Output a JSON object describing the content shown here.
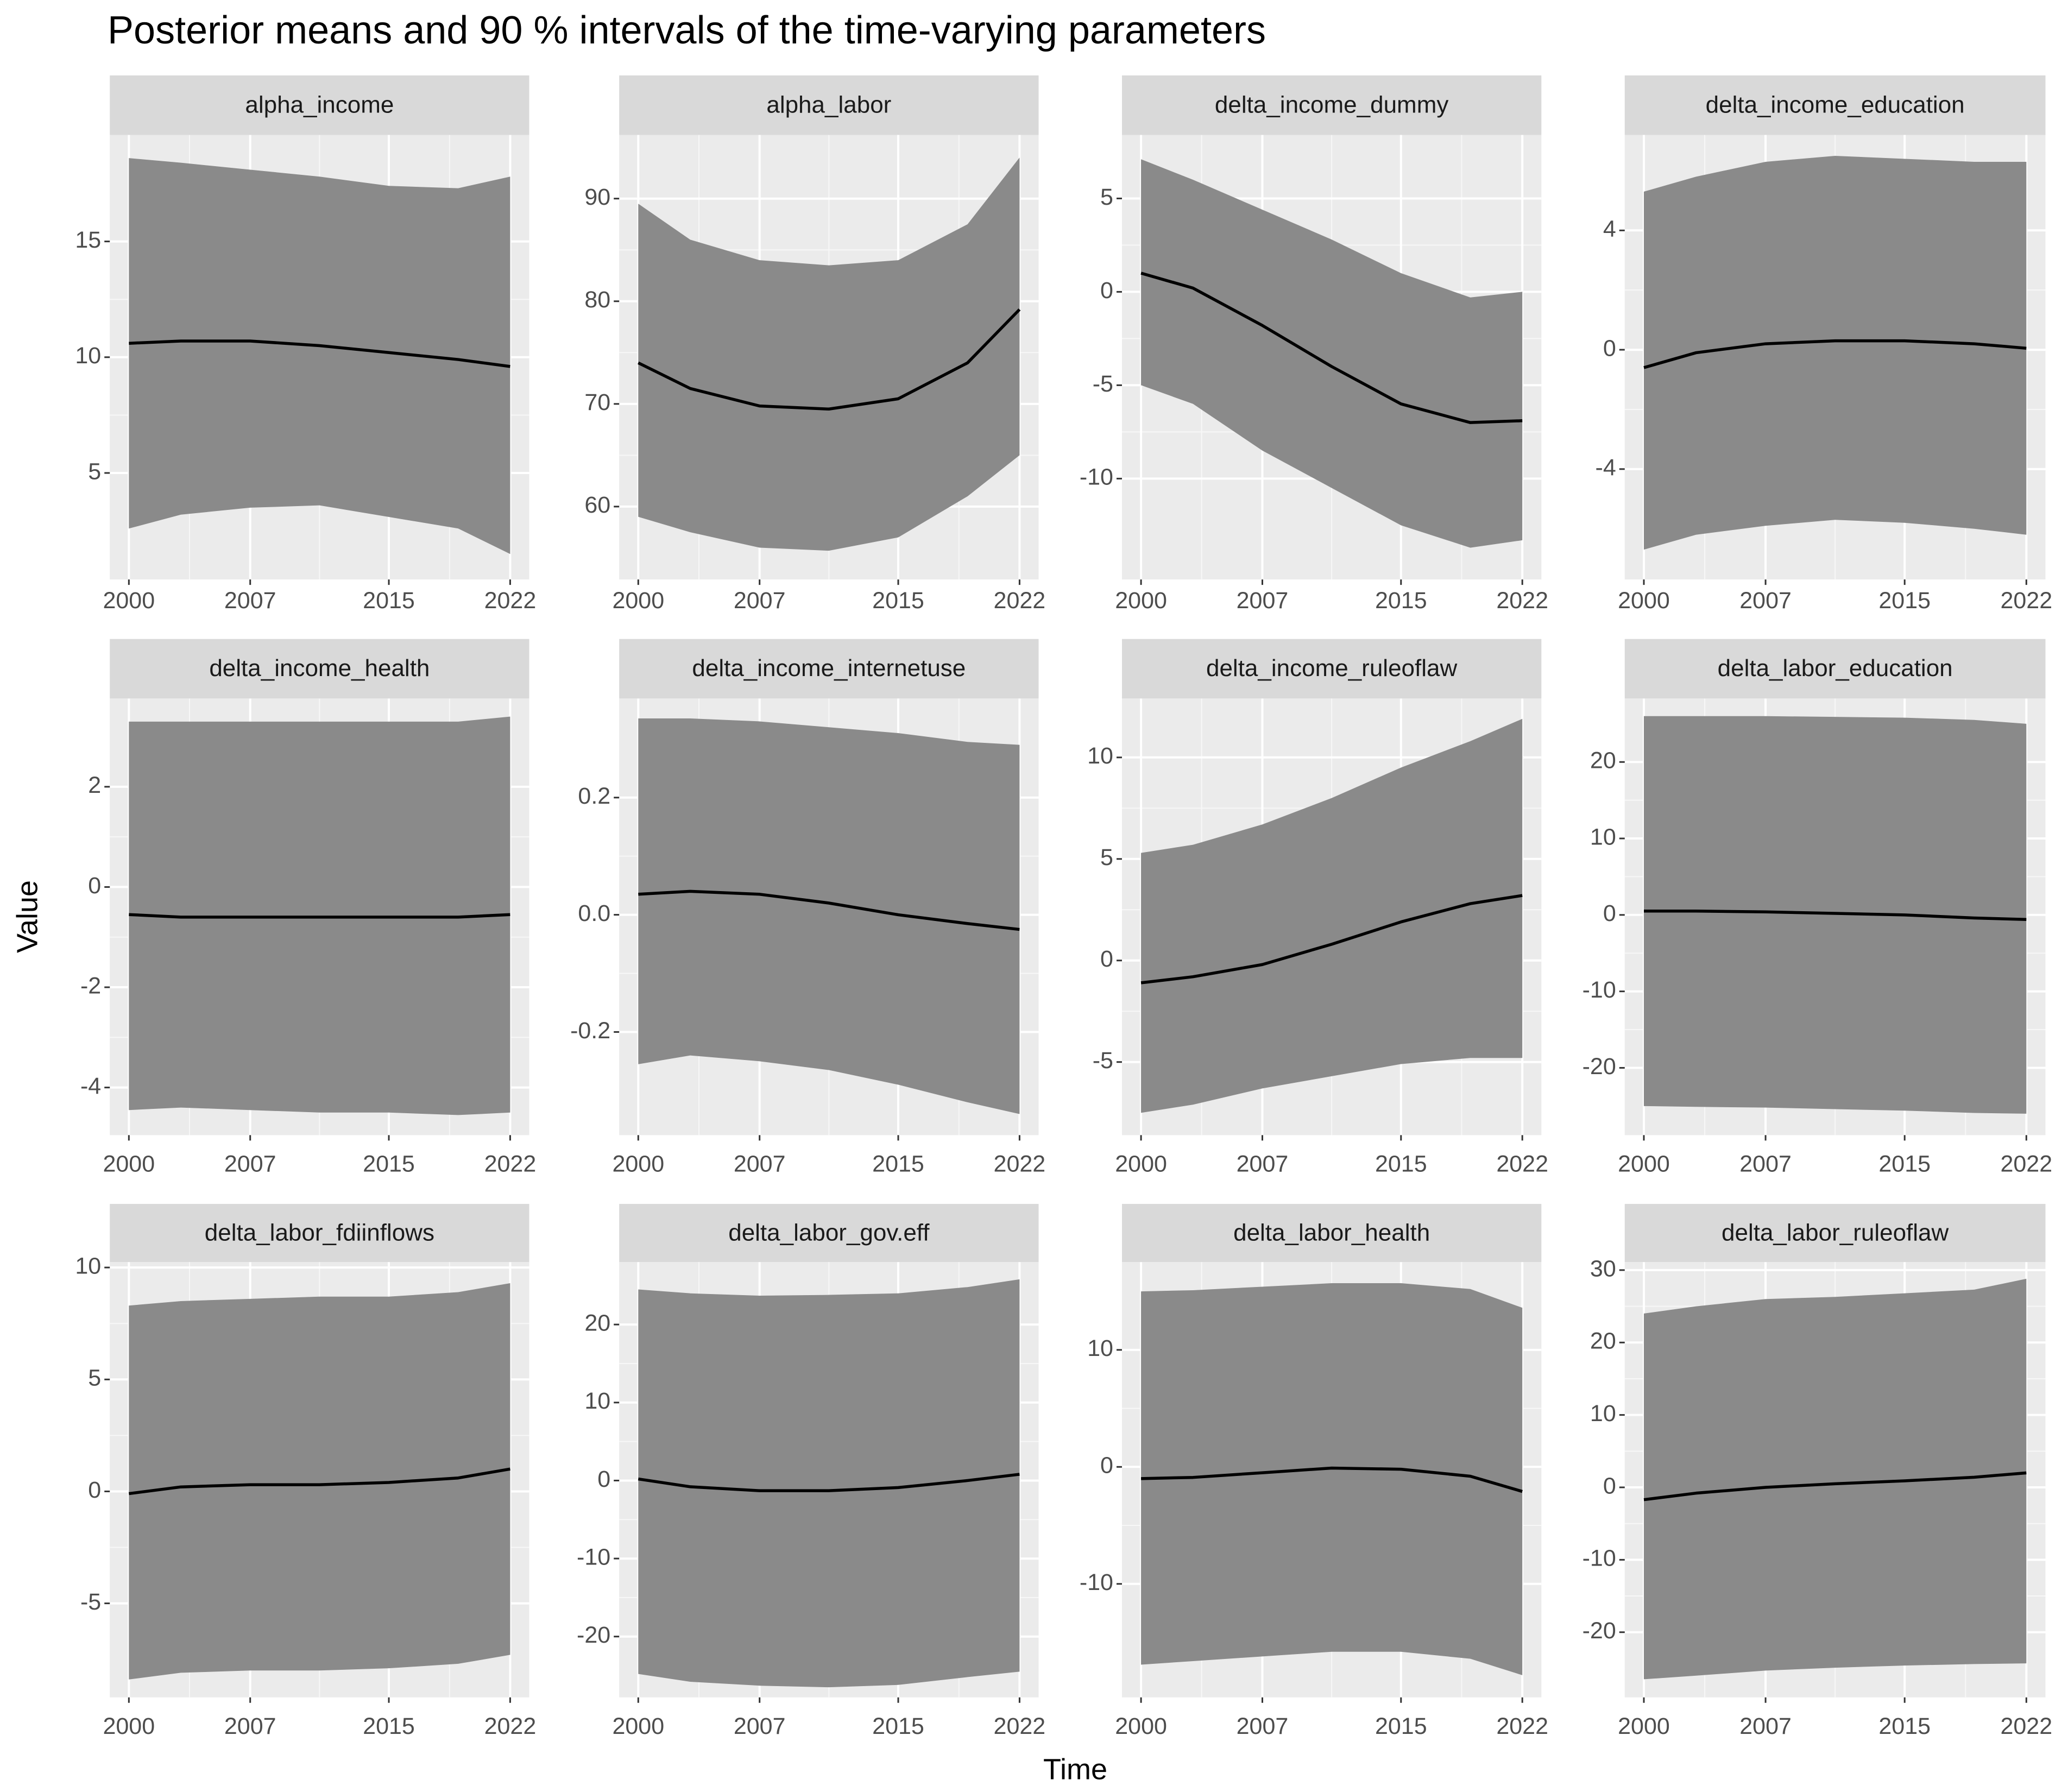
{
  "figure": {
    "title": "Posterior means and 90 % intervals of the time-varying parameters",
    "xlabel": "Time",
    "ylabel": "Value",
    "line_color": "#000000",
    "band_color": "#8a8a8a",
    "panel_color": "#ebebeb",
    "strip_color": "#d9d9d9",
    "grid": true
  },
  "chart_data": [
    {
      "type": "line",
      "title": "alpha_income",
      "x": [
        2000,
        2003,
        2007,
        2011,
        2015,
        2019,
        2022
      ],
      "values": [
        10.6,
        10.7,
        10.7,
        10.5,
        10.2,
        9.9,
        9.6
      ],
      "upper": [
        18.6,
        18.4,
        18.1,
        17.8,
        17.4,
        17.3,
        17.8
      ],
      "lower": [
        2.6,
        3.2,
        3.5,
        3.6,
        3.1,
        2.6,
        1.5
      ],
      "xlim": [
        1998.9,
        2023.1
      ],
      "xticks": [
        2000,
        2007,
        2015,
        2022
      ],
      "ylim": [
        0.4,
        19.6
      ],
      "yticks": [
        5,
        10,
        15
      ]
    },
    {
      "type": "line",
      "title": "alpha_labor",
      "x": [
        2000,
        2003,
        2007,
        2011,
        2015,
        2019,
        2022
      ],
      "values": [
        74,
        71.5,
        69.8,
        69.5,
        70.5,
        74,
        79.2
      ],
      "upper": [
        89.5,
        86,
        84,
        83.5,
        84,
        87.5,
        94
      ],
      "lower": [
        59,
        57.5,
        56,
        55.7,
        57,
        61,
        65
      ],
      "xlim": [
        1998.9,
        2023.1
      ],
      "xticks": [
        2000,
        2007,
        2015,
        2022
      ],
      "ylim": [
        52.9,
        96.2
      ],
      "yticks": [
        60,
        70,
        80,
        90
      ]
    },
    {
      "type": "line",
      "title": "delta_income_dummy",
      "x": [
        2000,
        2003,
        2007,
        2011,
        2015,
        2019,
        2022
      ],
      "values": [
        1,
        0.2,
        -1.8,
        -4,
        -6,
        -7,
        -6.9
      ],
      "upper": [
        7.1,
        6.0,
        4.4,
        2.8,
        1.0,
        -0.3,
        0.0
      ],
      "lower": [
        -5,
        -6,
        -8.5,
        -10.5,
        -12.5,
        -13.7,
        -13.3
      ],
      "xlim": [
        1998.9,
        2023.1
      ],
      "xticks": [
        2000,
        2007,
        2015,
        2022
      ],
      "ylim": [
        -15.4,
        8.4
      ],
      "yticks": [
        -10,
        -5,
        0,
        5
      ]
    },
    {
      "type": "line",
      "title": "delta_income_education",
      "x": [
        2000,
        2003,
        2007,
        2011,
        2015,
        2019,
        2022
      ],
      "values": [
        -0.6,
        -0.1,
        0.2,
        0.3,
        0.3,
        0.2,
        0.05
      ],
      "upper": [
        5.3,
        5.8,
        6.3,
        6.5,
        6.4,
        6.3,
        6.3
      ],
      "lower": [
        -6.7,
        -6.2,
        -5.9,
        -5.7,
        -5.8,
        -6.0,
        -6.2
      ],
      "xlim": [
        1998.9,
        2023.1
      ],
      "xticks": [
        2000,
        2007,
        2015,
        2022
      ],
      "ylim": [
        -7.7,
        7.2
      ],
      "yticks": [
        -4,
        0,
        4
      ]
    },
    {
      "type": "line",
      "title": "delta_income_health",
      "x": [
        2000,
        2003,
        2007,
        2011,
        2015,
        2019,
        2022
      ],
      "values": [
        -0.55,
        -0.6,
        -0.6,
        -0.6,
        -0.6,
        -0.6,
        -0.55
      ],
      "upper": [
        3.3,
        3.3,
        3.3,
        3.3,
        3.3,
        3.3,
        3.4
      ],
      "lower": [
        -4.45,
        -4.4,
        -4.45,
        -4.5,
        -4.5,
        -4.55,
        -4.5
      ],
      "xlim": [
        1998.9,
        2023.1
      ],
      "xticks": [
        2000,
        2007,
        2015,
        2022
      ],
      "ylim": [
        -4.95,
        3.76
      ],
      "yticks": [
        -4,
        -2,
        0,
        2
      ]
    },
    {
      "type": "line",
      "title": "delta_income_internetuse",
      "x": [
        2000,
        2003,
        2007,
        2011,
        2015,
        2019,
        2022
      ],
      "values": [
        0.035,
        0.04,
        0.035,
        0.02,
        0.0,
        -0.015,
        -0.025
      ],
      "upper": [
        0.335,
        0.335,
        0.33,
        0.32,
        0.31,
        0.295,
        0.29
      ],
      "lower": [
        -0.255,
        -0.24,
        -0.25,
        -0.265,
        -0.29,
        -0.32,
        -0.34
      ],
      "xlim": [
        1998.9,
        2023.1
      ],
      "xticks": [
        2000,
        2007,
        2015,
        2022
      ],
      "ylim": [
        -0.376,
        0.369
      ],
      "yticks": [
        -0.2,
        {
          "value": 0,
          "label": "0.0"
        },
        0.2
      ]
    },
    {
      "type": "line",
      "title": "delta_income_ruleoflaw",
      "x": [
        2000,
        2003,
        2007,
        2011,
        2015,
        2019,
        2022
      ],
      "values": [
        -1.1,
        -0.8,
        -0.2,
        0.8,
        1.9,
        2.8,
        3.2
      ],
      "upper": [
        5.3,
        5.7,
        6.7,
        8,
        9.5,
        10.8,
        11.9
      ],
      "lower": [
        -7.5,
        -7.1,
        -6.3,
        -5.7,
        -5.1,
        -4.8,
        -4.8
      ],
      "xlim": [
        1998.9,
        2023.1
      ],
      "xticks": [
        2000,
        2007,
        2015,
        2022
      ],
      "ylim": [
        -8.6,
        12.9
      ],
      "yticks": [
        -5,
        0,
        5,
        10
      ]
    },
    {
      "type": "line",
      "title": "delta_labor_education",
      "x": [
        2000,
        2003,
        2007,
        2011,
        2015,
        2019,
        2022
      ],
      "values": [
        0.5,
        0.5,
        0.4,
        0.2,
        0,
        -0.4,
        -0.6
      ],
      "upper": [
        26,
        26,
        26,
        25.9,
        25.8,
        25.5,
        25
      ],
      "lower": [
        -25,
        -25.1,
        -25.2,
        -25.4,
        -25.6,
        -25.9,
        -26
      ],
      "xlim": [
        1998.9,
        2023.1
      ],
      "xticks": [
        2000,
        2007,
        2015,
        2022
      ],
      "ylim": [
        -28.8,
        28.3
      ],
      "yticks": [
        -20,
        -10,
        0,
        10,
        20
      ]
    },
    {
      "type": "line",
      "title": "delta_labor_fdiinflows",
      "x": [
        2000,
        2003,
        2007,
        2011,
        2015,
        2019,
        2022
      ],
      "values": [
        -0.1,
        0.2,
        0.3,
        0.3,
        0.4,
        0.6,
        1.0
      ],
      "upper": [
        8.3,
        8.5,
        8.6,
        8.7,
        8.7,
        8.9,
        9.3
      ],
      "lower": [
        -8.4,
        -8.1,
        -8.0,
        -8.0,
        -7.9,
        -7.7,
        -7.3
      ],
      "xlim": [
        1998.9,
        2023.1
      ],
      "xticks": [
        2000,
        2007,
        2015,
        2022
      ],
      "ylim": [
        -9.2,
        10.24
      ],
      "yticks": [
        -5,
        0,
        5,
        10
      ]
    },
    {
      "type": "line",
      "title": "delta_labor_gov.eff",
      "x": [
        2000,
        2003,
        2007,
        2011,
        2015,
        2019,
        2022
      ],
      "values": [
        0.2,
        -0.8,
        -1.3,
        -1.3,
        -0.9,
        0,
        0.8
      ],
      "upper": [
        24.5,
        24,
        23.7,
        23.8,
        24,
        24.8,
        25.8
      ],
      "lower": [
        -24.8,
        -25.8,
        -26.3,
        -26.5,
        -26.2,
        -25.2,
        -24.5
      ],
      "xlim": [
        1998.9,
        2023.1
      ],
      "xticks": [
        2000,
        2007,
        2015,
        2022
      ],
      "ylim": [
        -27.8,
        28
      ],
      "yticks": [
        -20,
        -10,
        0,
        10,
        20
      ]
    },
    {
      "type": "line",
      "title": "delta_labor_health",
      "x": [
        2000,
        2003,
        2007,
        2011,
        2015,
        2019,
        2022
      ],
      "values": [
        -1,
        -0.9,
        -0.5,
        -0.1,
        -0.2,
        -0.8,
        -2.1
      ],
      "upper": [
        15,
        15.1,
        15.4,
        15.7,
        15.7,
        15.2,
        13.6
      ],
      "lower": [
        -16.9,
        -16.6,
        -16.2,
        -15.8,
        -15.8,
        -16.4,
        -17.8
      ],
      "xlim": [
        1998.9,
        2023.1
      ],
      "xticks": [
        2000,
        2007,
        2015,
        2022
      ],
      "ylim": [
        -19.7,
        17.5
      ],
      "yticks": [
        -10,
        0,
        10
      ]
    },
    {
      "type": "line",
      "title": "delta_labor_ruleoflaw",
      "x": [
        2000,
        2003,
        2007,
        2011,
        2015,
        2019,
        2022
      ],
      "values": [
        -1.7,
        -0.8,
        0,
        0.5,
        0.9,
        1.4,
        2.0
      ],
      "upper": [
        24,
        25,
        26,
        26.3,
        26.8,
        27.3,
        28.8
      ],
      "lower": [
        -26.5,
        -26,
        -25.3,
        -24.9,
        -24.6,
        -24.4,
        -24.3
      ],
      "xlim": [
        1998.9,
        2023.1
      ],
      "xticks": [
        2000,
        2007,
        2015,
        2022
      ],
      "ylim": [
        -29,
        31.1
      ],
      "yticks": [
        -20,
        -10,
        0,
        10,
        20,
        30
      ]
    }
  ]
}
